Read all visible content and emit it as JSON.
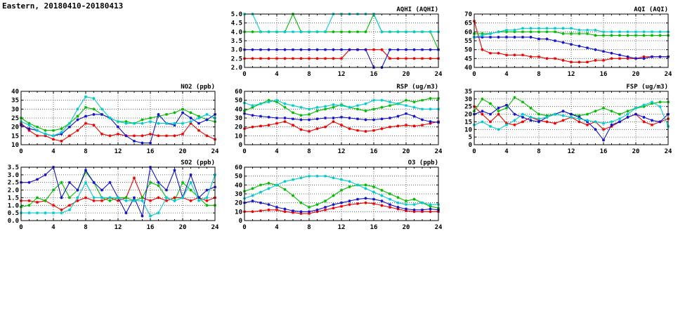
{
  "header": {
    "title": "Eastern, 20180410-20180413"
  },
  "colors": {
    "axis": "#000000",
    "grid": "#444444",
    "background": "#ffffff",
    "red": "#ee0000",
    "green": "#00bb00",
    "blue": "#1212cc",
    "cyan": "#00cccc"
  },
  "chart_data": [
    {
      "id": "aqhi",
      "type": "line",
      "title": "AQHI (AQHI)",
      "xlim": [
        0,
        24
      ],
      "xticks": [
        0,
        4,
        8,
        12,
        16,
        20,
        24
      ],
      "ylim": [
        2,
        5
      ],
      "ytick_step": 0.5,
      "yticks": [
        2,
        2.5,
        3,
        3.5,
        4,
        4.5,
        5
      ],
      "x": [
        0,
        1,
        2,
        3,
        4,
        5,
        6,
        7,
        8,
        9,
        10,
        11,
        12,
        13,
        14,
        15,
        16,
        17,
        18,
        19,
        20,
        21,
        22,
        23,
        24
      ],
      "series": [
        {
          "name": "red",
          "color": "#ee0000",
          "values": [
            2.5,
            2.5,
            2.5,
            2.5,
            2.5,
            2.5,
            2.5,
            2.5,
            2.5,
            2.5,
            2.5,
            2.5,
            2.5,
            3,
            3,
            3,
            3,
            3,
            2.5,
            2.5,
            2.5,
            2.5,
            2.5,
            2.5,
            2.5
          ]
        },
        {
          "name": "green",
          "color": "#00bb00",
          "values": [
            4,
            4,
            4,
            4,
            4,
            4,
            5,
            4,
            4,
            4,
            4,
            4,
            4,
            4,
            4,
            4,
            5,
            4,
            4,
            4,
            4,
            4,
            4,
            4,
            3
          ]
        },
        {
          "name": "blue",
          "color": "#1212cc",
          "values": [
            3,
            3,
            3,
            3,
            3,
            3,
            3,
            3,
            3,
            3,
            3,
            3,
            3,
            3,
            3,
            3,
            2,
            2,
            3,
            3,
            3,
            3,
            3,
            3,
            3
          ]
        },
        {
          "name": "cyan",
          "color": "#00cccc",
          "values": [
            5,
            5,
            4,
            4,
            4,
            4,
            4,
            4,
            4,
            4,
            4,
            5,
            5,
            5,
            5,
            5,
            5,
            4,
            4,
            4,
            4,
            4,
            4,
            4,
            4
          ]
        }
      ]
    },
    {
      "id": "aqi",
      "type": "line",
      "title": "AQI (AQI)",
      "xlim": [
        0,
        24
      ],
      "xticks": [
        0,
        4,
        8,
        12,
        16,
        20,
        24
      ],
      "ylim": [
        40,
        70
      ],
      "ytick_step": 5,
      "yticks": [
        40,
        45,
        50,
        55,
        60,
        65,
        70
      ],
      "x": [
        0,
        1,
        2,
        3,
        4,
        5,
        6,
        7,
        8,
        9,
        10,
        11,
        12,
        13,
        14,
        15,
        16,
        17,
        18,
        19,
        20,
        21,
        22,
        23,
        24
      ],
      "series": [
        {
          "name": "red",
          "color": "#ee0000",
          "values": [
            66,
            50,
            48,
            48,
            47,
            47,
            47,
            46,
            46,
            45,
            45,
            44,
            43,
            43,
            43,
            44,
            44,
            45,
            45,
            45,
            45,
            46,
            46,
            46,
            46
          ]
        },
        {
          "name": "green",
          "color": "#00bb00",
          "values": [
            59,
            59,
            59,
            60,
            60,
            60,
            60,
            60,
            60,
            60,
            60,
            59,
            59,
            59,
            59,
            58,
            58,
            58,
            58,
            58,
            58,
            58,
            58,
            58,
            58
          ]
        },
        {
          "name": "blue",
          "color": "#1212cc",
          "values": [
            57,
            57,
            57,
            57,
            57,
            57,
            57,
            57,
            56,
            56,
            55,
            54,
            53,
            52,
            51,
            50,
            49,
            48,
            47,
            46,
            45,
            45,
            46,
            46,
            46
          ]
        },
        {
          "name": "cyan",
          "color": "#00cccc",
          "values": [
            57,
            58,
            59,
            60,
            61,
            61,
            62,
            62,
            62,
            62,
            62,
            62,
            62,
            61,
            61,
            61,
            60,
            60,
            60,
            60,
            60,
            60,
            60,
            60,
            60
          ]
        }
      ]
    },
    {
      "id": "no2",
      "type": "line",
      "title": "NO2 (ppb)",
      "xlim": [
        0,
        24
      ],
      "xticks": [
        0,
        4,
        8,
        12,
        16,
        20,
        24
      ],
      "ylim": [
        10,
        40
      ],
      "ytick_step": 5,
      "yticks": [
        10,
        15,
        20,
        25,
        30,
        35,
        40
      ],
      "x": [
        0,
        1,
        2,
        3,
        4,
        5,
        6,
        7,
        8,
        9,
        10,
        11,
        12,
        13,
        14,
        15,
        16,
        17,
        18,
        19,
        20,
        21,
        22,
        23,
        24
      ],
      "series": [
        {
          "name": "red",
          "color": "#ee0000",
          "values": [
            22,
            18,
            15,
            15,
            13,
            12,
            15,
            18,
            22,
            21,
            16,
            15,
            16,
            15,
            15,
            15,
            16,
            15,
            15,
            15,
            16,
            22,
            18,
            15,
            13
          ]
        },
        {
          "name": "green",
          "color": "#00bb00",
          "values": [
            25,
            22,
            20,
            18,
            18,
            19,
            22,
            26,
            31,
            30,
            27,
            25,
            23,
            23,
            22,
            24,
            25,
            26,
            27,
            28,
            30,
            28,
            26,
            24,
            23
          ]
        },
        {
          "name": "blue",
          "color": "#1212cc",
          "values": [
            21,
            19,
            18,
            16,
            15,
            16,
            20,
            24,
            26,
            27,
            27,
            25,
            20,
            15,
            12,
            11,
            11,
            27,
            22,
            21,
            28,
            25,
            22,
            24,
            27
          ]
        },
        {
          "name": "cyan",
          "color": "#00cccc",
          "values": [
            23,
            21,
            18,
            16,
            15,
            17,
            22,
            30,
            37,
            36,
            30,
            25,
            23,
            22,
            22,
            22,
            23,
            22,
            22,
            22,
            22,
            23,
            25,
            27,
            25
          ]
        }
      ]
    },
    {
      "id": "rsp",
      "type": "line",
      "title": "RSP (ug/m3)",
      "xlim": [
        0,
        24
      ],
      "xticks": [
        0,
        4,
        8,
        12,
        16,
        20,
        24
      ],
      "ylim": [
        0,
        60
      ],
      "ytick_step": 10,
      "yticks": [
        0,
        10,
        20,
        30,
        40,
        50,
        60
      ],
      "x": [
        0,
        1,
        2,
        3,
        4,
        5,
        6,
        7,
        8,
        9,
        10,
        11,
        12,
        13,
        14,
        15,
        16,
        17,
        18,
        19,
        20,
        21,
        22,
        23,
        24
      ],
      "series": [
        {
          "name": "red",
          "color": "#ee0000",
          "values": [
            18,
            20,
            21,
            22,
            24,
            26,
            22,
            17,
            15,
            18,
            20,
            26,
            22,
            18,
            16,
            15,
            16,
            18,
            20,
            21,
            22,
            21,
            22,
            24,
            26
          ]
        },
        {
          "name": "green",
          "color": "#00bb00",
          "values": [
            38,
            42,
            46,
            50,
            48,
            42,
            36,
            33,
            34,
            38,
            40,
            42,
            45,
            42,
            40,
            38,
            40,
            42,
            44,
            46,
            50,
            48,
            50,
            52,
            52
          ]
        },
        {
          "name": "blue",
          "color": "#1212cc",
          "values": [
            35,
            33,
            32,
            31,
            30,
            30,
            29,
            28,
            28,
            29,
            30,
            30,
            31,
            30,
            29,
            28,
            28,
            29,
            30,
            32,
            35,
            32,
            28,
            26,
            25
          ]
        },
        {
          "name": "cyan",
          "color": "#00cccc",
          "values": [
            47,
            44,
            46,
            48,
            50,
            46,
            44,
            42,
            40,
            42,
            43,
            45,
            44,
            42,
            44,
            46,
            50,
            50,
            48,
            46,
            44,
            42,
            40,
            40,
            40
          ]
        }
      ]
    },
    {
      "id": "fsp",
      "type": "line",
      "title": "FSP (ug/m3)",
      "xlim": [
        0,
        24
      ],
      "xticks": [
        0,
        4,
        8,
        12,
        16,
        20,
        24
      ],
      "ylim": [
        0,
        35
      ],
      "ytick_step": 5,
      "yticks": [
        0,
        5,
        10,
        15,
        20,
        25,
        30,
        35
      ],
      "x": [
        0,
        1,
        2,
        3,
        4,
        5,
        6,
        7,
        8,
        9,
        10,
        11,
        12,
        13,
        14,
        15,
        16,
        17,
        18,
        19,
        20,
        21,
        22,
        23,
        24
      ],
      "series": [
        {
          "name": "red",
          "color": "#ee0000",
          "values": [
            25,
            20,
            15,
            20,
            14,
            13,
            15,
            18,
            16,
            15,
            14,
            16,
            18,
            15,
            13,
            15,
            10,
            12,
            15,
            18,
            20,
            15,
            13,
            15,
            17
          ]
        },
        {
          "name": "green",
          "color": "#00bb00",
          "values": [
            22,
            30,
            27,
            22,
            24,
            31,
            28,
            24,
            20,
            19,
            20,
            22,
            20,
            19,
            20,
            22,
            24,
            22,
            20,
            22,
            24,
            25,
            27,
            28,
            28
          ]
        },
        {
          "name": "blue",
          "color": "#1212cc",
          "values": [
            20,
            22,
            20,
            24,
            26,
            20,
            18,
            16,
            15,
            18,
            20,
            22,
            20,
            18,
            15,
            10,
            3,
            13,
            15,
            18,
            20,
            18,
            16,
            15,
            20
          ]
        },
        {
          "name": "cyan",
          "color": "#00cccc",
          "values": [
            13,
            15,
            12,
            10,
            13,
            16,
            20,
            18,
            17,
            18,
            20,
            19,
            18,
            17,
            16,
            15,
            14,
            15,
            17,
            20,
            24,
            26,
            28,
            25,
            12
          ]
        }
      ]
    },
    {
      "id": "so2",
      "type": "line",
      "title": "SO2 (ppb)",
      "xlim": [
        0,
        24
      ],
      "xticks": [
        0,
        4,
        8,
        12,
        16,
        20,
        24
      ],
      "ylim": [
        0,
        3.5
      ],
      "ytick_step": 0.5,
      "yticks": [
        0,
        0.5,
        1,
        1.5,
        2,
        2.5,
        3,
        3.5
      ],
      "x": [
        0,
        1,
        2,
        3,
        4,
        5,
        6,
        7,
        8,
        9,
        10,
        11,
        12,
        13,
        14,
        15,
        16,
        17,
        18,
        19,
        20,
        21,
        22,
        23,
        24
      ],
      "series": [
        {
          "name": "red",
          "color": "#ee0000",
          "values": [
            1.3,
            1.3,
            1.2,
            1.3,
            1.0,
            0.7,
            1.0,
            1.3,
            1.5,
            1.3,
            1.3,
            1.5,
            1.3,
            1.5,
            2.8,
            1.5,
            1.3,
            1.5,
            1.3,
            1.5,
            1.5,
            1.3,
            1.5,
            1.3,
            1.5
          ]
        },
        {
          "name": "green",
          "color": "#00bb00",
          "values": [
            0.9,
            1.0,
            1.5,
            1.3,
            2.0,
            2.5,
            1.5,
            2.0,
            3.2,
            2.5,
            1.5,
            1.3,
            1.5,
            1.5,
            1.3,
            1.5,
            2.5,
            2.3,
            1.5,
            1.3,
            2.5,
            2.0,
            1.5,
            1.0,
            1.0
          ]
        },
        {
          "name": "blue",
          "color": "#1212cc",
          "values": [
            2.5,
            2.5,
            2.7,
            3.0,
            3.5,
            1.5,
            2.5,
            2.0,
            3.3,
            2.5,
            2.0,
            2.5,
            1.5,
            0.5,
            1.5,
            0.3,
            3.5,
            2.5,
            2.0,
            3.3,
            1.5,
            3.0,
            1.5,
            2.0,
            2.2
          ]
        },
        {
          "name": "cyan",
          "color": "#00cccc",
          "values": [
            0.5,
            0.5,
            0.5,
            0.5,
            0.5,
            0.5,
            0.7,
            1.5,
            2.5,
            1.5,
            1.5,
            1.5,
            1.5,
            1.3,
            1.3,
            1.3,
            0.3,
            0.5,
            1.5,
            1.3,
            1.5,
            2.5,
            1.3,
            1.5,
            3.0
          ]
        }
      ]
    },
    {
      "id": "o3",
      "type": "line",
      "title": "O3 (ppb)",
      "xlim": [
        0,
        24
      ],
      "xticks": [
        0,
        4,
        8,
        12,
        16,
        20,
        24
      ],
      "ylim": [
        0,
        60
      ],
      "ytick_step": 10,
      "yticks": [
        0,
        10,
        20,
        30,
        40,
        50,
        60
      ],
      "x": [
        0,
        1,
        2,
        3,
        4,
        5,
        6,
        7,
        8,
        9,
        10,
        11,
        12,
        13,
        14,
        15,
        16,
        17,
        18,
        19,
        20,
        21,
        22,
        23,
        24
      ],
      "series": [
        {
          "name": "red",
          "color": "#ee0000",
          "values": [
            10,
            10,
            11,
            12,
            12,
            10,
            9,
            8,
            8,
            10,
            12,
            14,
            16,
            18,
            19,
            20,
            19,
            17,
            15,
            13,
            11,
            10,
            10,
            10,
            10
          ]
        },
        {
          "name": "green",
          "color": "#00bb00",
          "values": [
            33,
            36,
            40,
            42,
            40,
            35,
            28,
            20,
            15,
            18,
            22,
            28,
            34,
            38,
            40,
            40,
            38,
            34,
            30,
            26,
            22,
            24,
            20,
            16,
            14
          ]
        },
        {
          "name": "blue",
          "color": "#1212cc",
          "values": [
            20,
            22,
            20,
            18,
            15,
            13,
            11,
            10,
            10,
            12,
            15,
            18,
            20,
            22,
            24,
            25,
            24,
            22,
            18,
            15,
            13,
            12,
            12,
            13,
            12
          ]
        },
        {
          "name": "cyan",
          "color": "#00cccc",
          "values": [
            25,
            28,
            32,
            36,
            40,
            44,
            46,
            48,
            50,
            50,
            50,
            48,
            46,
            44,
            40,
            36,
            32,
            28,
            24,
            20,
            18,
            18,
            20,
            18,
            18
          ]
        }
      ]
    }
  ]
}
